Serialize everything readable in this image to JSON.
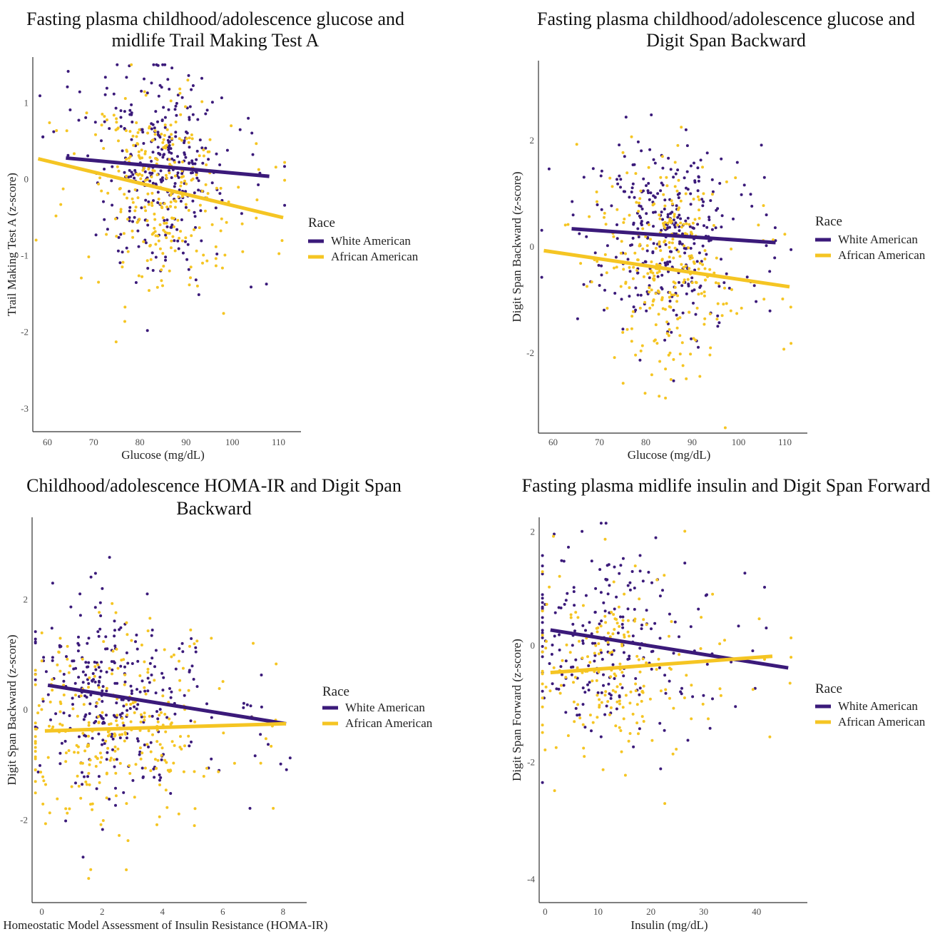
{
  "figure": {
    "palette": {
      "white_american": "#3b1a7a",
      "african_american": "#f5c523",
      "axis": "#333333"
    },
    "legend": {
      "title": "Race",
      "entries": [
        "White American",
        "African American"
      ]
    }
  },
  "chart_data": [
    {
      "type": "scatter",
      "title_lines": [
        "Fasting plasma childhood/adolescence glucose and",
        "midlife Trail Making Test A"
      ],
      "xlabel": "Glucose (mg/dL)",
      "ylabel": "Trail Making Test A (z-score)",
      "xlim": [
        57,
        113
      ],
      "ylim": [
        -3.3,
        1.6
      ],
      "xticks": [
        60,
        70,
        80,
        90,
        100,
        110
      ],
      "yticks": [
        -3,
        -2,
        -1,
        0,
        1
      ],
      "x_center": 84,
      "x_spread": 6.5,
      "series": [
        {
          "name": "White American",
          "n": 330,
          "fit": {
            "x": [
              64,
              108
            ],
            "y": [
              0.28,
              0.04
            ]
          }
        },
        {
          "name": "African American",
          "n": 300,
          "fit": {
            "x": [
              58,
              111
            ],
            "y": [
              0.27,
              -0.5
            ]
          }
        }
      ]
    },
    {
      "type": "scatter",
      "title_lines": [
        "Fasting plasma childhood/adolescence glucose and",
        "Digit Span Backward"
      ],
      "xlabel": "Glucose (mg/dL)",
      "ylabel": "Digit Span Backward (z-score)",
      "xlim": [
        57,
        113
      ],
      "ylim": [
        -3.5,
        3.5
      ],
      "xticks": [
        60,
        70,
        80,
        90,
        100,
        110
      ],
      "yticks": [
        -2,
        0,
        2
      ],
      "x_center": 85,
      "x_spread": 6.5,
      "series": [
        {
          "name": "White American",
          "n": 330,
          "fit": {
            "x": [
              64,
              108
            ],
            "y": [
              0.34,
              0.08
            ]
          }
        },
        {
          "name": "African American",
          "n": 300,
          "fit": {
            "x": [
              58,
              111
            ],
            "y": [
              -0.07,
              -0.75
            ]
          }
        }
      ]
    },
    {
      "type": "scatter",
      "title_lines": [
        "Childhood/adolescence HOMA-IR and Digit Span",
        "Backward"
      ],
      "xlabel": "Homeostatic Model Assessment of Insulin Resistance (HOMA-IR)",
      "ylabel": "Digit Span Backward (z-score)",
      "xlim": [
        -0.3,
        8.5
      ],
      "ylim": [
        -3.5,
        3.5
      ],
      "xticks": [
        0,
        2,
        4,
        6,
        8
      ],
      "yticks": [
        -2,
        0,
        2
      ],
      "x_center": 2.3,
      "x_spread": 1.5,
      "series": [
        {
          "name": "White American",
          "n": 300,
          "fit": {
            "x": [
              0.2,
              8.1
            ],
            "y": [
              0.45,
              -0.25
            ]
          }
        },
        {
          "name": "African American",
          "n": 300,
          "fit": {
            "x": [
              0.1,
              8.1
            ],
            "y": [
              -0.38,
              -0.25
            ]
          }
        }
      ]
    },
    {
      "type": "scatter",
      "title_lines": [
        "Fasting plasma midlife insulin and Digit Span Forward"
      ],
      "xlabel": "Insulin (mg/dL)",
      "ylabel": "Digit Span Forward (z-score)",
      "xlim": [
        -1,
        48
      ],
      "ylim": [
        -4.4,
        2.2
      ],
      "xticks": [
        0,
        10,
        20,
        30,
        40
      ],
      "yticks": [
        -4,
        -2,
        0
      ],
      "extra_ytick_labels": [
        {
          "value": 2,
          "label": "2"
        }
      ],
      "x_center": 11,
      "x_spread": 8,
      "series": [
        {
          "name": "White American",
          "n": 230,
          "fit": {
            "x": [
              1,
              46
            ],
            "y": [
              0.27,
              -0.38
            ]
          }
        },
        {
          "name": "African American",
          "n": 200,
          "fit": {
            "x": [
              1,
              43
            ],
            "y": [
              -0.46,
              -0.18
            ]
          }
        }
      ]
    }
  ]
}
